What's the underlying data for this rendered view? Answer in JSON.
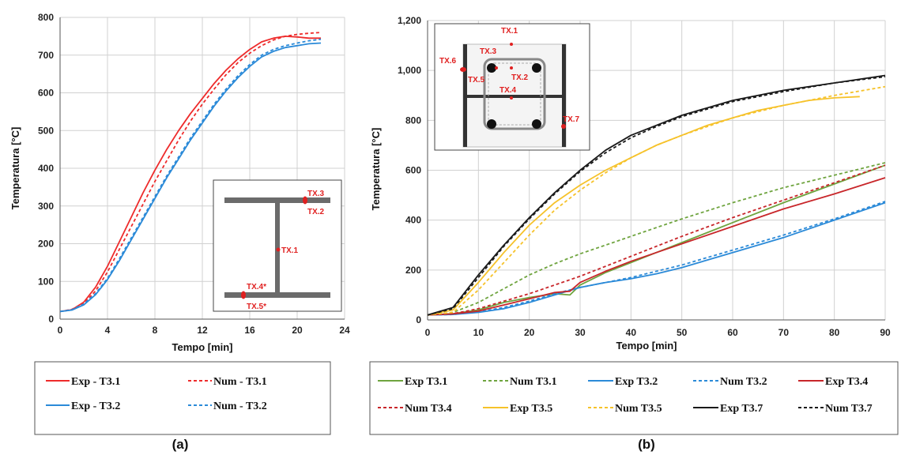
{
  "panels": {
    "a": "(a)",
    "b": "(b)"
  },
  "colors": {
    "red": "#ee2b2b",
    "blue": "#2b8ad8",
    "green": "#6fa43f",
    "darkred": "#c8262a",
    "yellow": "#f6c22a",
    "black": "#1a1a1a",
    "tx": "#e02020"
  },
  "chart_data": [
    {
      "type": "line",
      "panel": "(a)",
      "xlabel": "Tempo [min]",
      "ylabel": "Temperatura [°C]",
      "xlim": [
        0,
        24
      ],
      "ylim": [
        0,
        800
      ],
      "xticks": [
        "0",
        "4",
        "8",
        "12",
        "16",
        "20",
        "24"
      ],
      "yticks": [
        "0",
        "100",
        "200",
        "300",
        "400",
        "500",
        "600",
        "700",
        "800"
      ],
      "grid": true,
      "legend_position": "below",
      "series": [
        {
          "name": "Exp - T3.1",
          "color": "#ee2b2b",
          "dash": "solid",
          "x": [
            0,
            1,
            2,
            3,
            4,
            5,
            6,
            7,
            8,
            9,
            10,
            11,
            12,
            13,
            14,
            15,
            16,
            17,
            18,
            19,
            20,
            21,
            22
          ],
          "y": [
            20,
            25,
            45,
            85,
            140,
            205,
            270,
            335,
            395,
            450,
            500,
            545,
            585,
            625,
            660,
            690,
            715,
            735,
            745,
            750,
            748,
            745,
            745
          ]
        },
        {
          "name": "Num - T3.1",
          "color": "#ee2b2b",
          "dash": "dashed",
          "x": [
            0,
            1,
            2,
            3,
            4,
            5,
            6,
            7,
            8,
            9,
            10,
            11,
            12,
            13,
            14,
            15,
            16,
            17,
            18,
            19,
            20,
            21,
            22
          ],
          "y": [
            20,
            26,
            42,
            75,
            125,
            185,
            245,
            305,
            365,
            420,
            475,
            525,
            570,
            610,
            648,
            680,
            705,
            725,
            740,
            750,
            755,
            758,
            760
          ]
        },
        {
          "name": "Exp - T3.2",
          "color": "#2b8ad8",
          "dash": "solid",
          "x": [
            0,
            1,
            2,
            3,
            4,
            5,
            6,
            7,
            8,
            9,
            10,
            11,
            12,
            13,
            14,
            15,
            16,
            17,
            18,
            19,
            20,
            21,
            22
          ],
          "y": [
            20,
            24,
            38,
            65,
            105,
            155,
            210,
            265,
            320,
            375,
            425,
            475,
            520,
            565,
            605,
            640,
            670,
            695,
            710,
            720,
            725,
            730,
            732
          ]
        },
        {
          "name": "Num - T3.2",
          "color": "#2b8ad8",
          "dash": "dashed",
          "x": [
            0,
            1,
            2,
            3,
            4,
            5,
            6,
            7,
            8,
            9,
            10,
            11,
            12,
            13,
            14,
            15,
            16,
            17,
            18,
            19,
            20,
            21,
            22
          ],
          "y": [
            20,
            25,
            40,
            68,
            108,
            160,
            215,
            270,
            325,
            380,
            430,
            480,
            525,
            570,
            610,
            645,
            675,
            700,
            715,
            725,
            732,
            738,
            742
          ]
        }
      ],
      "inset_labels": [
        "TX.3",
        "TX.2",
        "TX.1",
        "TX.4*",
        "TX.5*"
      ]
    },
    {
      "type": "line",
      "panel": "(b)",
      "xlabel": "Tempo [min]",
      "ylabel": "Temperatura [°C]",
      "xlim": [
        0,
        90
      ],
      "ylim": [
        0,
        1200
      ],
      "xticks": [
        "0",
        "10",
        "20",
        "30",
        "40",
        "50",
        "60",
        "70",
        "80",
        "90"
      ],
      "yticks": [
        "0",
        "200",
        "400",
        "600",
        "800",
        "1,000",
        "1,200"
      ],
      "grid": true,
      "legend_position": "below",
      "series": [
        {
          "name": "Exp T3.1",
          "color": "#6fa43f",
          "dash": "solid",
          "x": [
            0,
            5,
            10,
            15,
            20,
            25,
            28,
            30,
            35,
            40,
            45,
            50,
            60,
            70,
            80,
            90
          ],
          "y": [
            20,
            25,
            40,
            70,
            90,
            105,
            100,
            140,
            190,
            230,
            270,
            310,
            390,
            470,
            545,
            620
          ]
        },
        {
          "name": "Num T3.1",
          "color": "#6fa43f",
          "dash": "dashed",
          "x": [
            0,
            5,
            10,
            15,
            20,
            25,
            30,
            35,
            40,
            45,
            50,
            60,
            70,
            80,
            90
          ],
          "y": [
            20,
            30,
            70,
            125,
            180,
            225,
            265,
            300,
            335,
            370,
            405,
            470,
            530,
            580,
            630
          ]
        },
        {
          "name": "Exp T3.2",
          "color": "#2b8ad8",
          "dash": "solid",
          "x": [
            0,
            5,
            10,
            15,
            20,
            25,
            30,
            35,
            40,
            45,
            50,
            60,
            70,
            80,
            90
          ],
          "y": [
            20,
            22,
            30,
            45,
            70,
            100,
            130,
            150,
            165,
            185,
            210,
            270,
            330,
            400,
            470
          ]
        },
        {
          "name": "Num T3.2",
          "color": "#2b8ad8",
          "dash": "dashed",
          "x": [
            0,
            5,
            10,
            15,
            20,
            25,
            30,
            35,
            40,
            45,
            50,
            60,
            70,
            80,
            90
          ],
          "y": [
            20,
            22,
            32,
            50,
            75,
            105,
            130,
            150,
            170,
            195,
            220,
            280,
            340,
            405,
            475
          ]
        },
        {
          "name": "Exp T3.4",
          "color": "#c8262a",
          "dash": "solid",
          "x": [
            0,
            5,
            10,
            15,
            20,
            25,
            28,
            30,
            35,
            40,
            45,
            50,
            60,
            70,
            80,
            90
          ],
          "y": [
            20,
            24,
            35,
            60,
            85,
            110,
            115,
            150,
            195,
            235,
            270,
            305,
            375,
            445,
            505,
            570
          ]
        },
        {
          "name": "Num T3.4",
          "color": "#c8262a",
          "dash": "dashed",
          "x": [
            0,
            5,
            10,
            15,
            20,
            25,
            30,
            35,
            40,
            45,
            50,
            60,
            70,
            80,
            90
          ],
          "y": [
            20,
            25,
            45,
            75,
            105,
            140,
            175,
            215,
            255,
            295,
            335,
            410,
            480,
            550,
            620
          ]
        },
        {
          "name": "Exp T3.5",
          "color": "#f6c22a",
          "dash": "solid",
          "x": [
            0,
            5,
            10,
            15,
            20,
            25,
            30,
            35,
            40,
            45,
            50,
            55,
            60,
            65,
            70,
            75,
            80,
            85
          ],
          "y": [
            20,
            40,
            150,
            270,
            380,
            470,
            540,
            600,
            650,
            700,
            740,
            780,
            810,
            840,
            860,
            880,
            890,
            895
          ]
        },
        {
          "name": "Num T3.5",
          "color": "#f6c22a",
          "dash": "dashed",
          "x": [
            0,
            5,
            10,
            15,
            20,
            25,
            30,
            35,
            40,
            45,
            50,
            60,
            70,
            80,
            90
          ],
          "y": [
            20,
            30,
            120,
            230,
            340,
            440,
            520,
            590,
            650,
            700,
            740,
            810,
            860,
            900,
            935
          ]
        },
        {
          "name": "Exp T3.7",
          "color": "#1a1a1a",
          "dash": "solid",
          "x": [
            0,
            5,
            10,
            15,
            20,
            25,
            30,
            35,
            40,
            45,
            50,
            60,
            70,
            80,
            90
          ],
          "y": [
            20,
            50,
            180,
            300,
            410,
            510,
            600,
            680,
            740,
            780,
            820,
            880,
            920,
            950,
            980
          ]
        },
        {
          "name": "Num T3.7",
          "color": "#1a1a1a",
          "dash": "dashed",
          "x": [
            0,
            5,
            10,
            15,
            20,
            25,
            30,
            35,
            40,
            45,
            50,
            60,
            70,
            80,
            90
          ],
          "y": [
            20,
            45,
            170,
            295,
            405,
            505,
            595,
            670,
            730,
            775,
            815,
            875,
            915,
            950,
            975
          ]
        }
      ],
      "inset_labels": [
        "TX.1",
        "TX.6",
        "TX.3",
        "TX.5",
        "TX.2",
        "TX.4",
        "TX.7"
      ]
    }
  ]
}
